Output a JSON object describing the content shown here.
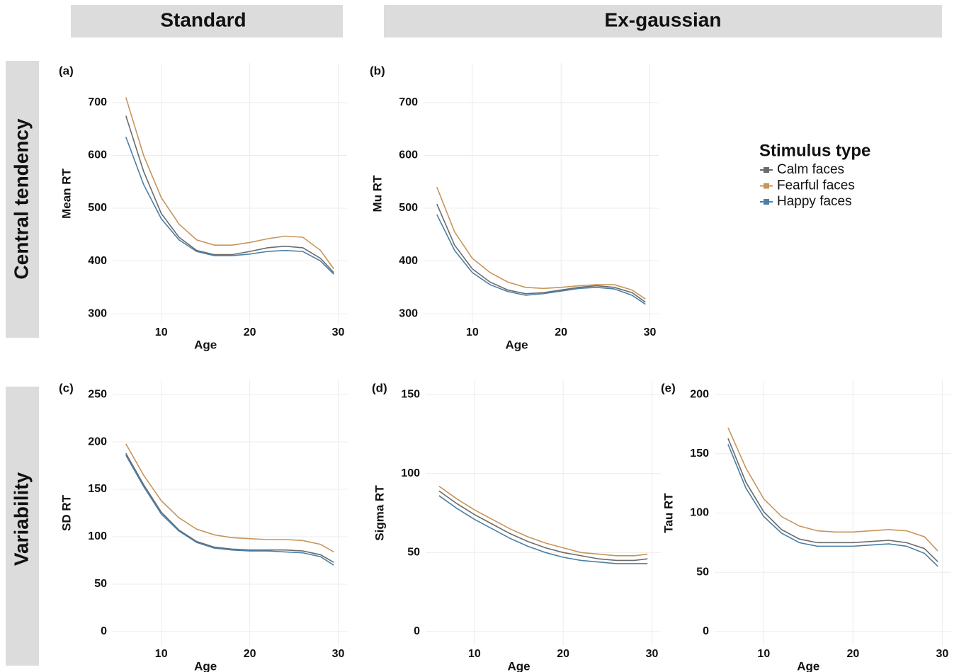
{
  "facets": {
    "columns": [
      "Standard",
      "Ex-gaussian"
    ],
    "rows": [
      "Central tendency",
      "Variability"
    ]
  },
  "chart_data": [
    {
      "type": "line",
      "panel_label": "(a)",
      "ylabel": "Mean RT",
      "xlabel": "Age",
      "legend_title": "Stimulus type",
      "grid": true,
      "x": [
        6,
        8,
        10,
        12,
        14,
        16,
        18,
        20,
        22,
        24,
        26,
        28,
        29.5
      ],
      "xlim": [
        4.5,
        31
      ],
      "xticks": [
        10,
        20,
        30
      ],
      "ylim": [
        280,
        775
      ],
      "yticks": [
        300,
        400,
        500,
        600,
        700
      ],
      "series": [
        {
          "name": "Calm faces",
          "color": "#6b6b6b",
          "values": [
            675,
            570,
            490,
            445,
            420,
            412,
            412,
            418,
            425,
            428,
            425,
            405,
            378
          ]
        },
        {
          "name": "Fearful faces",
          "color": "#c8955a",
          "values": [
            710,
            600,
            520,
            470,
            440,
            430,
            430,
            435,
            442,
            447,
            445,
            420,
            385
          ]
        },
        {
          "name": "Happy faces",
          "color": "#4a7fa7",
          "values": [
            635,
            545,
            480,
            440,
            418,
            410,
            410,
            413,
            418,
            420,
            418,
            400,
            375
          ]
        }
      ]
    },
    {
      "type": "line",
      "panel_label": "(b)",
      "ylabel": "Mu RT",
      "xlabel": "Age",
      "grid": true,
      "x": [
        6,
        8,
        10,
        12,
        14,
        16,
        18,
        20,
        22,
        24,
        26,
        28,
        29.5
      ],
      "xlim": [
        4.5,
        31
      ],
      "xticks": [
        10,
        20,
        30
      ],
      "ylim": [
        280,
        775
      ],
      "yticks": [
        300,
        400,
        500,
        600,
        700
      ],
      "series": [
        {
          "color": "#6b6b6b",
          "values": [
            508,
            430,
            385,
            360,
            345,
            338,
            340,
            345,
            350,
            353,
            350,
            340,
            322
          ]
        },
        {
          "color": "#c8955a",
          "values": [
            540,
            455,
            405,
            378,
            360,
            350,
            348,
            350,
            353,
            355,
            355,
            345,
            328
          ]
        },
        {
          "color": "#4a7fa7",
          "values": [
            488,
            420,
            378,
            355,
            342,
            335,
            338,
            343,
            348,
            350,
            347,
            335,
            318
          ]
        }
      ]
    },
    {
      "type": "line",
      "panel_label": "(c)",
      "ylabel": "SD RT",
      "xlabel": "Age",
      "grid": true,
      "x": [
        6,
        8,
        10,
        12,
        14,
        16,
        18,
        20,
        22,
        24,
        26,
        28,
        29.5
      ],
      "xlim": [
        4.5,
        31
      ],
      "xticks": [
        10,
        20,
        30
      ],
      "ylim": [
        -15,
        265
      ],
      "yticks": [
        0,
        50,
        100,
        150,
        200,
        250
      ],
      "series": [
        {
          "color": "#6b6b6b",
          "values": [
            188,
            155,
            126,
            107,
            95,
            89,
            87,
            86,
            86,
            86,
            85,
            81,
            73
          ]
        },
        {
          "color": "#c8955a",
          "values": [
            198,
            165,
            138,
            120,
            108,
            102,
            99,
            98,
            97,
            97,
            96,
            92,
            84
          ]
        },
        {
          "color": "#4a7fa7",
          "values": [
            186,
            153,
            124,
            106,
            94,
            88,
            86,
            85,
            85,
            84,
            83,
            79,
            70
          ]
        }
      ]
    },
    {
      "type": "line",
      "panel_label": "(d)",
      "ylabel": "Sigma RT",
      "xlabel": "Age",
      "grid": true,
      "x": [
        6,
        8,
        10,
        12,
        14,
        16,
        18,
        20,
        22,
        24,
        26,
        28,
        29.5
      ],
      "xlim": [
        4.5,
        31
      ],
      "xticks": [
        10,
        20,
        30
      ],
      "ylim": [
        -9,
        159
      ],
      "yticks": [
        0,
        50,
        100,
        150
      ],
      "series": [
        {
          "color": "#6b6b6b",
          "values": [
            89,
            81,
            74,
            68,
            62,
            57,
            53,
            50,
            48,
            46,
            45,
            45,
            46
          ]
        },
        {
          "color": "#c8955a",
          "values": [
            92,
            84,
            77,
            71,
            65,
            60,
            56,
            53,
            50,
            49,
            48,
            48,
            49
          ]
        },
        {
          "color": "#4a7fa7",
          "values": [
            86,
            78,
            71,
            65,
            59,
            54,
            50,
            47,
            45,
            44,
            43,
            43,
            43
          ]
        }
      ]
    },
    {
      "type": "line",
      "panel_label": "(e)",
      "ylabel": "Tau RT",
      "xlabel": "Age",
      "grid": true,
      "x": [
        6,
        8,
        10,
        12,
        14,
        16,
        18,
        20,
        22,
        24,
        26,
        28,
        29.5
      ],
      "xlim": [
        4.5,
        31
      ],
      "xticks": [
        10,
        20,
        30
      ],
      "ylim": [
        -12,
        212
      ],
      "yticks": [
        0,
        50,
        100,
        150,
        200
      ],
      "series": [
        {
          "color": "#6b6b6b",
          "values": [
            163,
            126,
            101,
            86,
            78,
            75,
            75,
            75,
            76,
            77,
            75,
            70,
            59
          ]
        },
        {
          "color": "#c8955a",
          "values": [
            172,
            138,
            112,
            97,
            89,
            85,
            84,
            84,
            85,
            86,
            85,
            80,
            68
          ]
        },
        {
          "color": "#4a7fa7",
          "values": [
            158,
            121,
            97,
            83,
            75,
            72,
            72,
            72,
            73,
            74,
            72,
            66,
            55
          ]
        }
      ]
    }
  ]
}
